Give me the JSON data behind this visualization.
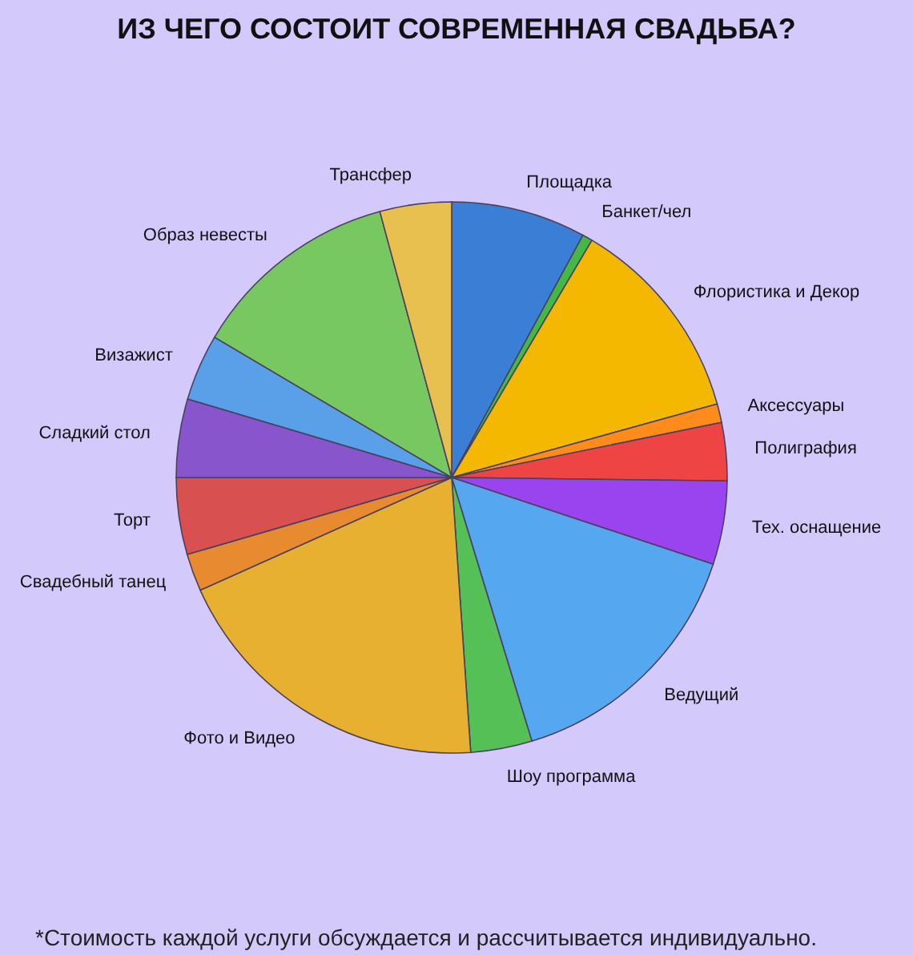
{
  "chart_data": {
    "type": "pie",
    "title": "ИЗ ЧЕГО СОСТОИТ СОВРЕМЕННАЯ СВАДЬБА?",
    "categories": [
      "Площадка",
      "Банкет/чел",
      "Флористика и Декор",
      "Аксессуары",
      "Полиграфия",
      "Тех. оснащение",
      "Ведущий",
      "Шоу программа",
      "Фото и Видео",
      "Свадебный танец",
      "Торт",
      "Сладкий стол",
      "Визажист",
      "Образ невесты",
      "Трансфер"
    ],
    "values": [
      7.9,
      0.6,
      12.2,
      1.1,
      3.4,
      4.9,
      15.2,
      3.6,
      19.4,
      2.2,
      4.5,
      4.6,
      3.9,
      12.3,
      4.2
    ],
    "colors": [
      "#3a7fd5",
      "#44b844",
      "#f5b800",
      "#ff8c1a",
      "#ee4444",
      "#9944ee",
      "#55a8f0",
      "#55c055",
      "#e8b030",
      "#e88a30",
      "#d85050",
      "#8855cc",
      "#5aa0e8",
      "#77c860",
      "#e8c050"
    ],
    "annotations": [
      "*Стоимость каждой услуги обсуждается и рассчитывается индивидуально."
    ]
  }
}
